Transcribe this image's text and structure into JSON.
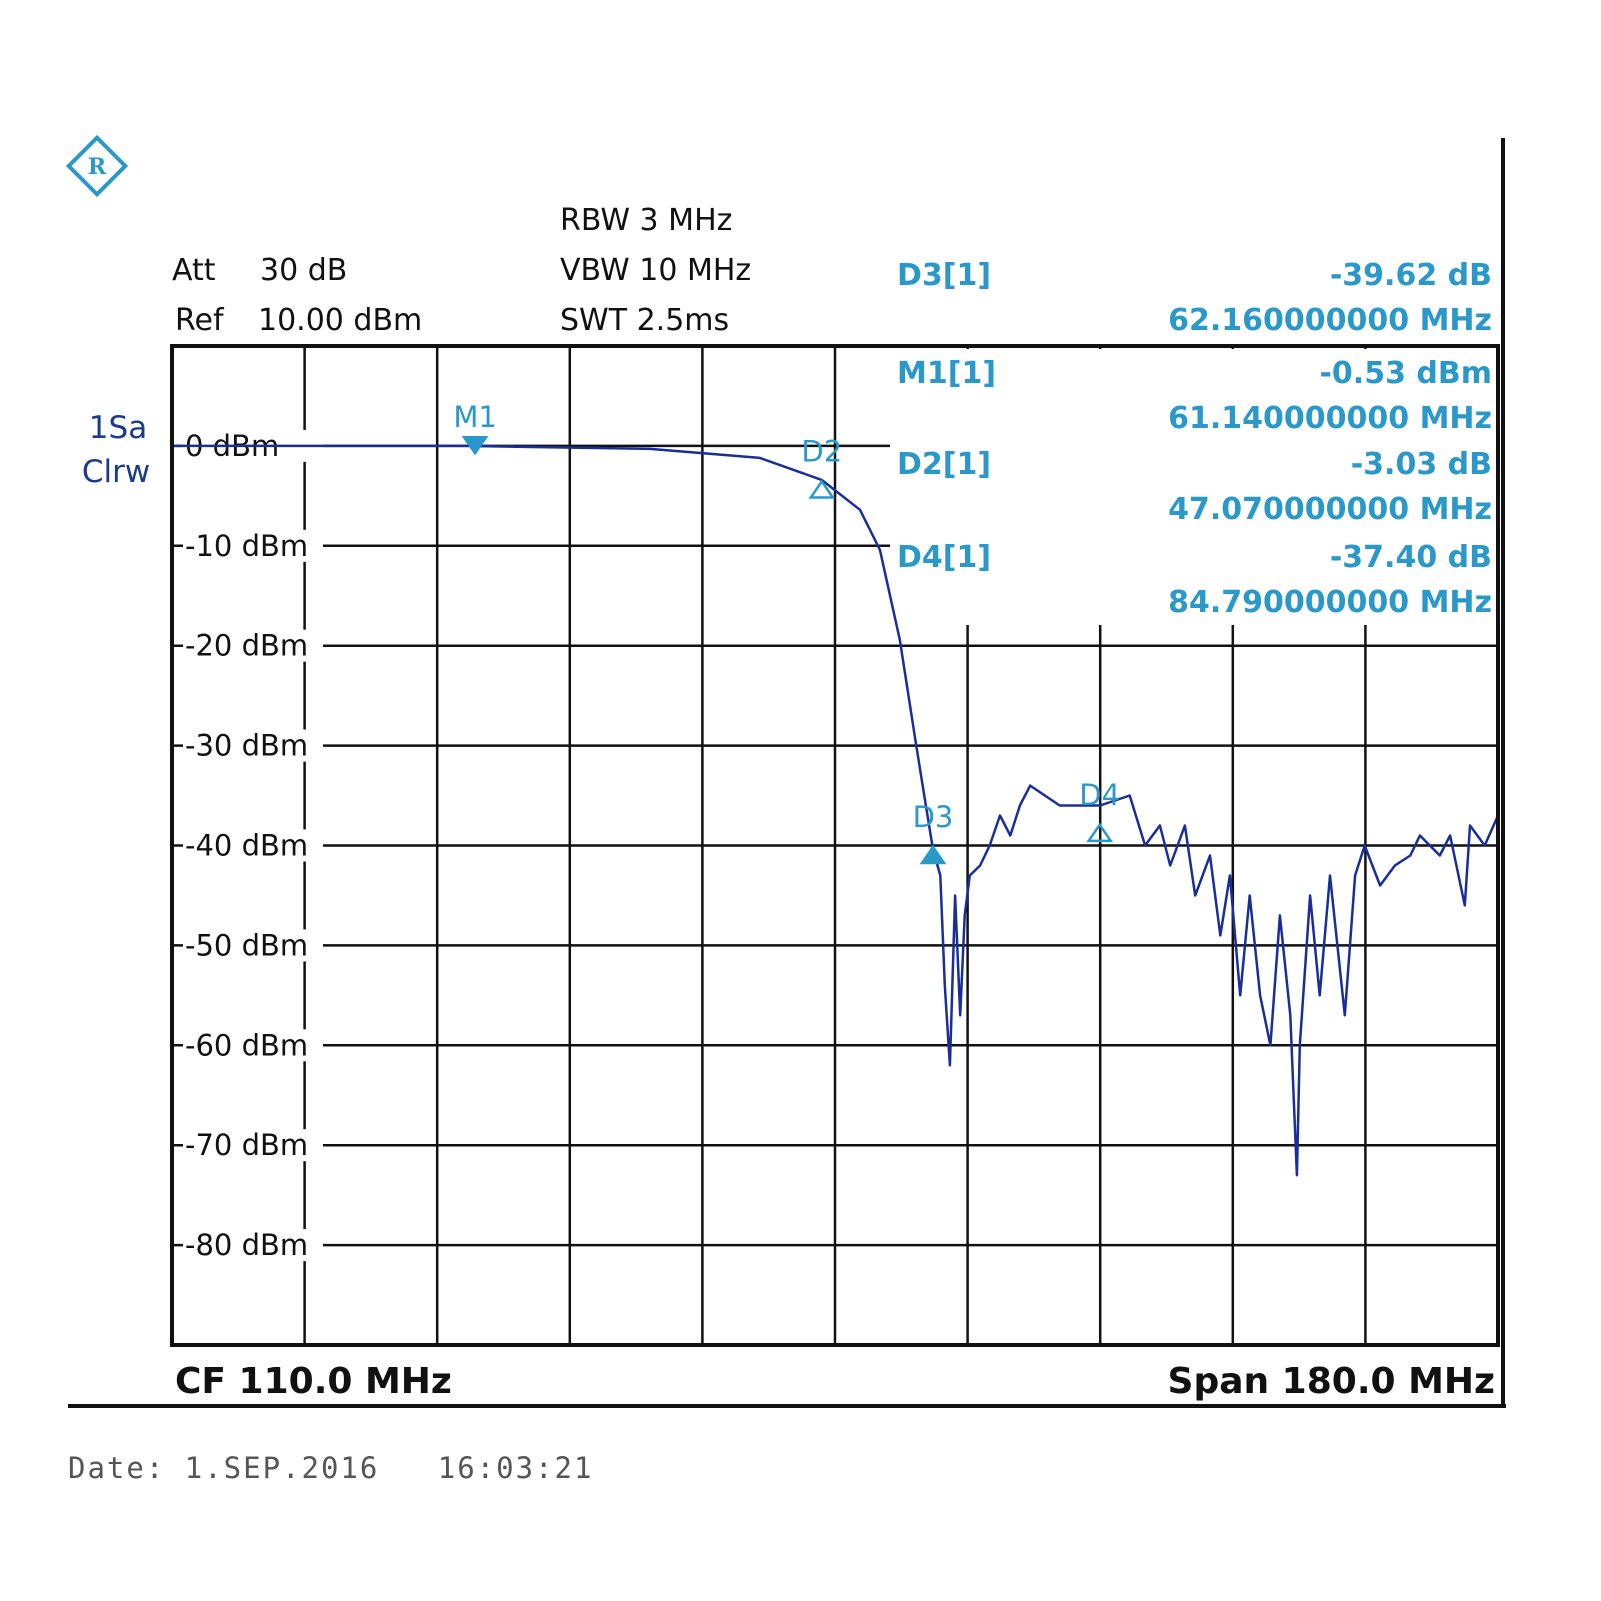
{
  "header": {
    "att_label": "Att",
    "att_value": "30 dB",
    "ref_label": "Ref",
    "ref_value": "10.00 dBm",
    "rbw": "RBW 3 MHz",
    "vbw": "VBW 10 MHz",
    "swt": "SWT 2.5ms",
    "logo": "R&S"
  },
  "trace_label": {
    "line1": "1Sa",
    "line2": "Clrw"
  },
  "marker_table": [
    {
      "name": "D3[1]",
      "value": "-39.62 dB",
      "freq": "62.160000000 MHz"
    },
    {
      "name": "M1[1]",
      "value": "-0.53 dBm",
      "freq": "61.140000000 MHz"
    },
    {
      "name": "D2[1]",
      "value": "-3.03 dB",
      "freq": "47.070000000 MHz"
    },
    {
      "name": "D4[1]",
      "value": "-37.40 dB",
      "freq": "84.790000000 MHz"
    }
  ],
  "footer": {
    "cf": "CF 110.0 MHz",
    "span": "Span 180.0 MHz",
    "date": "Date: 1.SEP.2016   16:03:21"
  },
  "colors": {
    "trace": "#1a2e9a",
    "marker": "#2a98c8",
    "grid": "#111111"
  },
  "chart_data": {
    "type": "line",
    "xlim": [
      20,
      200
    ],
    "ylim": [
      -90,
      10
    ],
    "x_unit": "MHz",
    "y_unit": "dBm",
    "grid": true,
    "ytick_labels": [
      "0 dBm",
      "-10 dBm",
      "-20 dBm",
      "-30 dBm",
      "-40 dBm",
      "-50 dBm",
      "-60 dBm",
      "-70 dBm",
      "-80 dBm"
    ],
    "yticks": [
      0,
      -10,
      -20,
      -30,
      -40,
      -50,
      -60,
      -70,
      -80
    ],
    "markers": [
      {
        "label": "M1",
        "x": 61.14,
        "y": -0.53,
        "style": "filled-down"
      },
      {
        "label": "D2",
        "x": 108.21,
        "y": -3.56,
        "style": "outline-up"
      },
      {
        "label": "D3",
        "x": 123.3,
        "y": -40.15,
        "style": "filled-up"
      },
      {
        "label": "D4",
        "x": 145.93,
        "y": -37.93,
        "style": "outline-up"
      }
    ],
    "series": [
      {
        "x": [
          20,
          40,
          60,
          84.9,
          99.8,
          108.2,
          113.4,
          116.1,
          118.8,
          120.9,
          122.2,
          123.3,
          124.3,
          124.9,
          125.6,
          126.3,
          127.0,
          127.6,
          128.3,
          129.7,
          131.0,
          132.4,
          133.8,
          135.1,
          136.5,
          140.5,
          146.0,
          150.0,
          152.1,
          154.1,
          155.5,
          157.5,
          158.9,
          160.9,
          162.3,
          163.6,
          165.0,
          166.3,
          167.7,
          169.1,
          170.4,
          171.8,
          172.7,
          173.1,
          174.5,
          175.8,
          177.2,
          179.2,
          180.6,
          181.9,
          184.0,
          186.0,
          188.1,
          189.4,
          192.1,
          193.5,
          195.5,
          196.2,
          198.2,
          200.0
        ],
        "y": [
          0,
          0,
          0,
          -0.3,
          -1.2,
          -3.4,
          -6.4,
          -10.4,
          -19.4,
          -29.4,
          -35.4,
          -40.4,
          -43,
          -54,
          -62,
          -45,
          -57,
          -47,
          -43,
          -42,
          -40,
          -37,
          -39,
          -36,
          -34,
          -36,
          -36,
          -35,
          -40,
          -38,
          -42,
          -38,
          -45,
          -41,
          -49,
          -43,
          -55,
          -45,
          -55,
          -60,
          -47,
          -57,
          -73,
          -60,
          -45,
          -55,
          -43,
          -57,
          -43,
          -40,
          -44,
          -42,
          -41,
          -39,
          -41,
          -39,
          -46,
          -38,
          -40,
          -37
        ]
      }
    ]
  }
}
